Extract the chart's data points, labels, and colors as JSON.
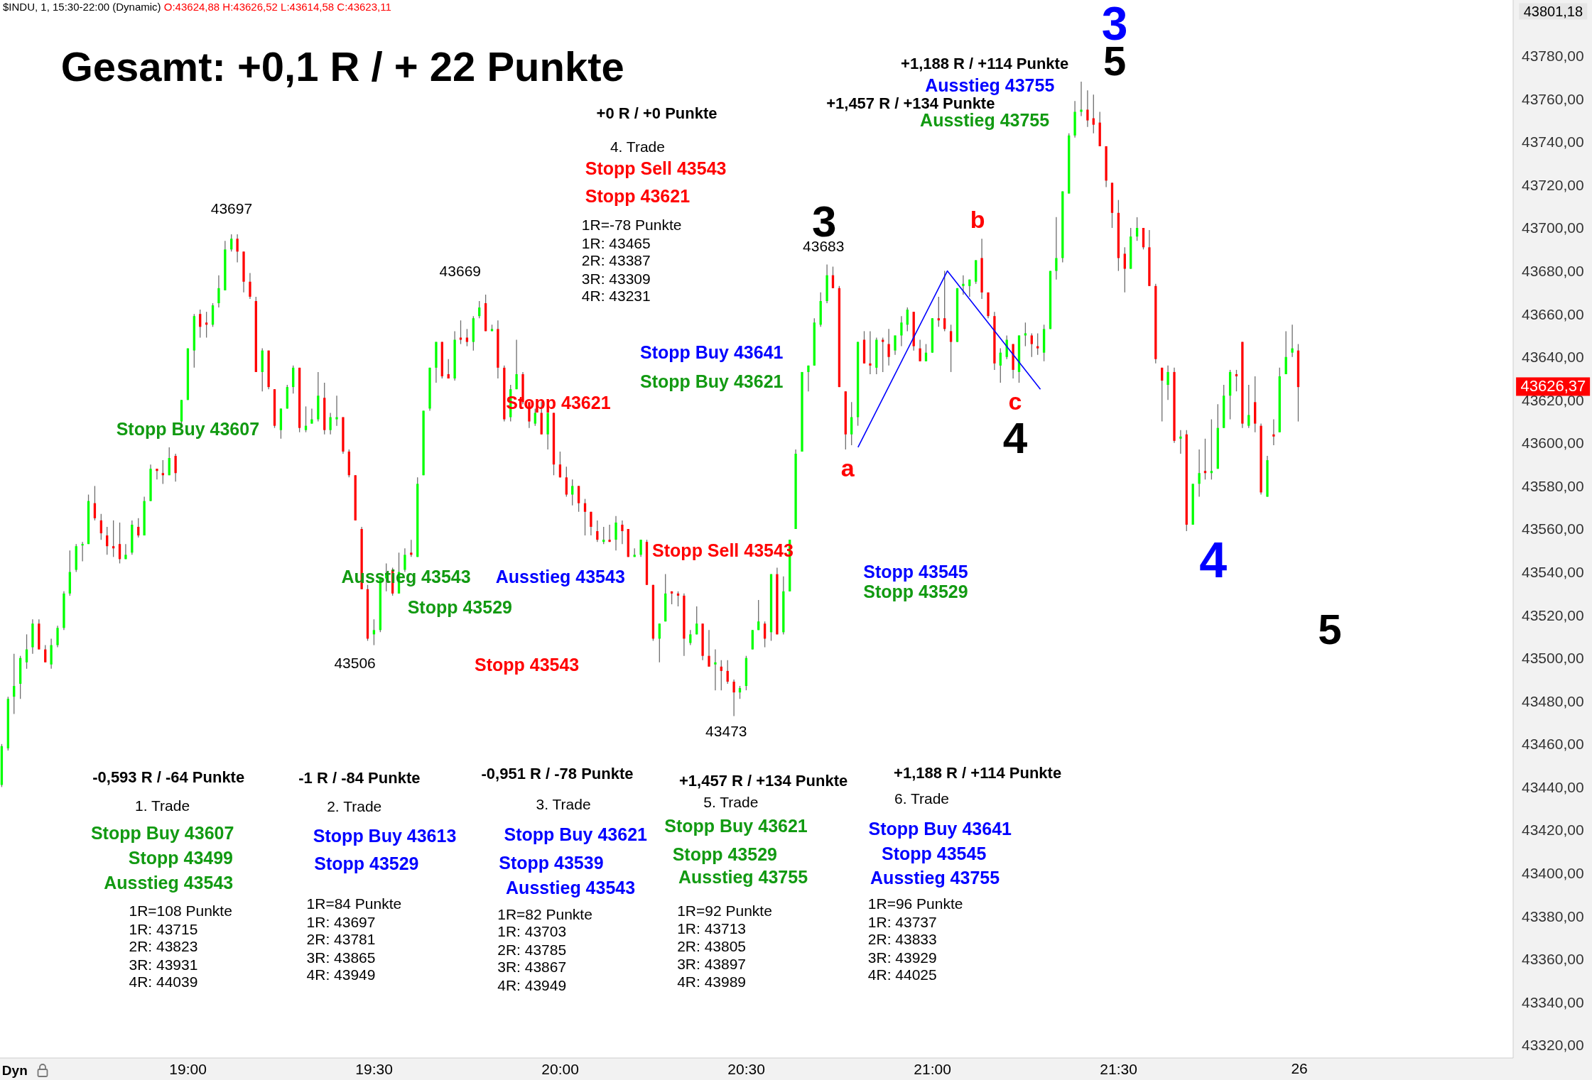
{
  "chart_data": {
    "type": "candlestick",
    "title": "Gesamt: +0,1 R  / + 22 Punkte",
    "subtitle": "$INDU, 1, 15:30-22:00 (Dynamic)",
    "xlim": [
      18.495,
      22.56
    ],
    "xticks": [
      {
        "value": 19,
        "label": "19:00"
      },
      {
        "value": 19.5,
        "label": "19:30"
      },
      {
        "value": 20,
        "label": "20:00"
      },
      {
        "value": 20.5,
        "label": "20:30"
      },
      {
        "value": 21,
        "label": "21:00"
      },
      {
        "value": 21.5,
        "label": "21:30"
      }
    ],
    "ylim": [
      43314,
      43806
    ],
    "yticks": [
      {
        "value": 43320,
        "label": "43320,00"
      },
      {
        "value": 43340,
        "label": "43340,00"
      },
      {
        "value": 43360,
        "label": "43360,00"
      },
      {
        "value": 43380,
        "label": "43380,00"
      },
      {
        "value": 43400,
        "label": "43400,00"
      },
      {
        "value": 43420,
        "label": "43420,00"
      },
      {
        "value": 43440,
        "label": "43440,00"
      },
      {
        "value": 43460,
        "label": "43460,00"
      },
      {
        "value": 43480,
        "label": "43480,00"
      },
      {
        "value": 43500,
        "label": "43500,00"
      },
      {
        "value": 43520,
        "label": "43520,00"
      },
      {
        "value": 43540,
        "label": "43540,00"
      },
      {
        "value": 43560,
        "label": "43560,00"
      },
      {
        "value": 43580,
        "label": "43580,00"
      },
      {
        "value": 43600,
        "label": "43600,00"
      },
      {
        "value": 43620,
        "label": "43620,00"
      },
      {
        "value": 43640,
        "label": "43640,00"
      },
      {
        "value": 43660,
        "label": "43660,00"
      },
      {
        "value": 43680,
        "label": "43680,00"
      },
      {
        "value": 43700,
        "label": "43700,00"
      },
      {
        "value": 43720,
        "label": "43720,00"
      },
      {
        "value": 43740,
        "label": "43740,00"
      },
      {
        "value": 43760,
        "label": "43760,00"
      },
      {
        "value": 43780,
        "label": "43780,00"
      }
    ],
    "series": [
      {
        "x": [
          18.5,
          18.517,
          18.533,
          18.55,
          18.567,
          18.583,
          18.6,
          18.617,
          18.633,
          18.65,
          18.667,
          18.683,
          18.7,
          18.717,
          18.733,
          18.75,
          18.767,
          18.783,
          18.8,
          18.817,
          18.833,
          18.85,
          18.867,
          18.883,
          18.9,
          18.917,
          18.933,
          18.95,
          18.967,
          18.983,
          19.0,
          19.017,
          19.033,
          19.05,
          19.067,
          19.083,
          19.1,
          19.117,
          19.133,
          19.15,
          19.167,
          19.183,
          19.2,
          19.217,
          19.233,
          19.25,
          19.267,
          19.283,
          19.3,
          19.317,
          19.333,
          19.35,
          19.367,
          19.383,
          19.4,
          19.417,
          19.433,
          19.45,
          19.467,
          19.483,
          19.5,
          19.517,
          19.533,
          19.55,
          19.567,
          19.583,
          19.6,
          19.617,
          19.633,
          19.65,
          19.667,
          19.683,
          19.7,
          19.717,
          19.733,
          19.75,
          19.767,
          19.783,
          19.8,
          19.817,
          19.833,
          19.85,
          19.867,
          19.883,
          19.9,
          19.917,
          19.933,
          19.95,
          19.967,
          19.983,
          20.0,
          20.017,
          20.033,
          20.05,
          20.067,
          20.083,
          20.1,
          20.117,
          20.133,
          20.15,
          20.167,
          20.183,
          20.2,
          20.217,
          20.233,
          20.25,
          20.267,
          20.283,
          20.3,
          20.317,
          20.333,
          20.35,
          20.367,
          20.383,
          20.4,
          20.417,
          20.433,
          20.45,
          20.467,
          20.483,
          20.5,
          20.517,
          20.533,
          20.55,
          20.567,
          20.583,
          20.6,
          20.617,
          20.633,
          20.65,
          20.667,
          20.683,
          20.7,
          20.717,
          20.733,
          20.75,
          20.767,
          20.783,
          20.8,
          20.817,
          20.833,
          20.85,
          20.867,
          20.883,
          20.9,
          20.917,
          20.933,
          20.95,
          20.967,
          20.983,
          21.0,
          21.017,
          21.033,
          21.05,
          21.067,
          21.083,
          21.1,
          21.117,
          21.133,
          21.15,
          21.167,
          21.183,
          21.2,
          21.217,
          21.233,
          21.25,
          21.267,
          21.283,
          21.3,
          21.317,
          21.333,
          21.35,
          21.367,
          21.383,
          21.4,
          21.417,
          21.433,
          21.45,
          21.467,
          21.483,
          21.5,
          21.517,
          21.533,
          21.55,
          21.567,
          21.583,
          21.6,
          21.617,
          21.633,
          21.65,
          21.667,
          21.683,
          21.7,
          21.717,
          21.733,
          21.75,
          21.767,
          21.783,
          21.8,
          21.817,
          21.833,
          21.85,
          21.867,
          21.883,
          21.9,
          21.917,
          21.933,
          21.95,
          21.967,
          21.983
        ],
        "ohlc": [
          [
            43441,
            43460,
            43440,
            43459
          ],
          [
            43458,
            43482,
            43457,
            43481
          ],
          [
            43482,
            43502,
            43474,
            43487
          ],
          [
            43488,
            43501,
            43481,
            43500
          ],
          [
            43498,
            43511,
            43495,
            43504
          ],
          [
            43505,
            43518,
            43502,
            43516
          ],
          [
            43516,
            43518,
            43504,
            43504
          ],
          [
            43504,
            43506,
            43498,
            43498
          ],
          [
            43497,
            43509,
            43495,
            43506
          ],
          [
            43506,
            43515,
            43505,
            43514
          ],
          [
            43514,
            43531,
            43513,
            43530
          ],
          [
            43530,
            43550,
            43529,
            43540
          ],
          [
            43541,
            43553,
            43540,
            43552
          ],
          [
            43553,
            43554,
            43545,
            43553
          ],
          [
            43553,
            43576,
            43553,
            43573
          ],
          [
            43572,
            43580,
            43564,
            43565
          ],
          [
            43564,
            43567,
            43555,
            43558
          ],
          [
            43557,
            43561,
            43548,
            43552
          ],
          [
            43552,
            43564,
            43547,
            43551
          ],
          [
            43553,
            43563,
            43544,
            43546
          ],
          [
            43546,
            43553,
            43546,
            43548
          ],
          [
            43549,
            43564,
            43548,
            43562
          ],
          [
            43561,
            43565,
            43556,
            43557
          ],
          [
            43557,
            43575,
            43557,
            43573
          ],
          [
            43573,
            43590,
            43573,
            43588
          ],
          [
            43588,
            43588,
            43583,
            43587
          ],
          [
            43586,
            43592,
            43581,
            43585
          ],
          [
            43585,
            43598,
            43585,
            43593
          ],
          [
            43594,
            43595,
            43582,
            43586
          ],
          [
            43610,
            43620,
            43609,
            43620
          ],
          [
            43620,
            43644,
            43620,
            43644
          ],
          [
            43643,
            43660,
            43635,
            43659
          ],
          [
            43660,
            43662,
            43649,
            43654
          ],
          [
            43656,
            43661,
            43649,
            43655
          ],
          [
            43655,
            43665,
            43654,
            43664
          ],
          [
            43665,
            43678,
            43663,
            43672
          ],
          [
            43671,
            43694,
            43671,
            43690
          ],
          [
            43690,
            43697,
            43689,
            43695
          ],
          [
            43695,
            43697,
            43684,
            43689
          ],
          [
            43689,
            43689,
            43670,
            43675
          ],
          [
            43675,
            43679,
            43667,
            43668
          ],
          [
            43666,
            43668,
            43633,
            43633
          ],
          [
            43633,
            43644,
            43624,
            43643
          ],
          [
            43643,
            43643,
            43625,
            43626
          ],
          [
            43625,
            43625,
            43607,
            43608
          ],
          [
            43606,
            43616,
            43602,
            43616
          ],
          [
            43616,
            43627,
            43616,
            43626
          ],
          [
            43626,
            43636,
            43623,
            43635
          ],
          [
            43635,
            43635,
            43605,
            43607
          ],
          [
            43606,
            43617,
            43605,
            43608
          ],
          [
            43609,
            43616,
            43609,
            43611
          ],
          [
            43611,
            43633,
            43610,
            43622
          ],
          [
            43621,
            43628,
            43604,
            43606
          ],
          [
            43606,
            43614,
            43604,
            43612
          ],
          [
            43611,
            43622,
            43608,
            43612
          ],
          [
            43612,
            43612,
            43595,
            43596
          ],
          [
            43596,
            43597,
            43584,
            43585
          ],
          [
            43585,
            43585,
            43564,
            43564
          ],
          [
            43560,
            43561,
            43532,
            43532
          ],
          [
            43532,
            43534,
            43508,
            43509
          ],
          [
            43511,
            43518,
            43506,
            43513
          ],
          [
            43513,
            43537,
            43512,
            43537
          ],
          [
            43537,
            43544,
            43531,
            43539
          ],
          [
            43541,
            43542,
            43529,
            43530
          ],
          [
            43530,
            43549,
            43530,
            43540
          ],
          [
            43541,
            43551,
            43540,
            43548
          ],
          [
            43549,
            43555,
            43547,
            43548
          ],
          [
            43547,
            43584,
            43547,
            43581
          ],
          [
            43585,
            43615,
            43585,
            43615
          ],
          [
            43616,
            43635,
            43615,
            43635
          ],
          [
            43635,
            43647,
            43628,
            43647
          ],
          [
            43647,
            43647,
            43630,
            43631
          ],
          [
            43632,
            43639,
            43630,
            43630
          ],
          [
            43630,
            43652,
            43629,
            43648
          ],
          [
            43649,
            43657,
            43646,
            43648
          ],
          [
            43649,
            43653,
            43645,
            43647
          ],
          [
            43647,
            43659,
            43643,
            43658
          ],
          [
            43659,
            43666,
            43658,
            43663
          ],
          [
            43665,
            43669,
            43652,
            43652
          ],
          [
            43652,
            43655,
            43652,
            43653
          ],
          [
            43653,
            43657,
            43630,
            43635
          ],
          [
            43635,
            43636,
            43610,
            43611
          ],
          [
            43612,
            43627,
            43610,
            43625
          ],
          [
            43625,
            43648,
            43625,
            43632
          ],
          [
            43632,
            43633,
            43618,
            43619
          ],
          [
            43619,
            43619,
            43607,
            43610
          ],
          [
            43609,
            43616,
            43608,
            43614
          ],
          [
            43614,
            43619,
            43604,
            43604
          ],
          [
            43604,
            43614,
            43597,
            43614
          ],
          [
            43614,
            43614,
            43585,
            43590
          ],
          [
            43590,
            43596,
            43584,
            43584
          ],
          [
            43584,
            43589,
            43575,
            43576
          ],
          [
            43576,
            43583,
            43571,
            43580
          ],
          [
            43580,
            43580,
            43568,
            43572
          ],
          [
            43572,
            43574,
            43557,
            43568
          ],
          [
            43568,
            43568,
            43557,
            43561
          ],
          [
            43559,
            43564,
            43554,
            43555
          ],
          [
            43554,
            43561,
            43553,
            43555
          ],
          [
            43555,
            43562,
            43554,
            43554
          ],
          [
            43555,
            43566,
            43550,
            43563
          ],
          [
            43562,
            43564,
            43553,
            43559
          ],
          [
            43560,
            43560,
            43547,
            43547
          ],
          [
            43547,
            43551,
            43547,
            43548
          ],
          [
            43548,
            43555,
            43547,
            43555
          ],
          [
            43554,
            43555,
            43534,
            43534
          ],
          [
            43534,
            43534,
            43508,
            43509
          ],
          [
            43509,
            43516,
            43498,
            43516
          ],
          [
            43517,
            43539,
            43517,
            43530
          ],
          [
            43531,
            43531,
            43525,
            43530
          ],
          [
            43530,
            43531,
            43524,
            43529
          ],
          [
            43529,
            43530,
            43501,
            43509
          ],
          [
            43507,
            43513,
            43506,
            43511
          ],
          [
            43511,
            43524,
            43511,
            43516
          ],
          [
            43516,
            43516,
            43499,
            43501
          ],
          [
            43501,
            43513,
            43496,
            43496
          ],
          [
            43497,
            43504,
            43485,
            43498
          ],
          [
            43496,
            43499,
            43485,
            43494
          ],
          [
            43494,
            43499,
            43488,
            43489
          ],
          [
            43489,
            43490,
            43473,
            43484
          ],
          [
            43484,
            43487,
            43481,
            43486
          ],
          [
            43487,
            43501,
            43485,
            43500
          ],
          [
            43504,
            43513,
            43504,
            43513
          ],
          [
            43513,
            43527,
            43513,
            43517
          ],
          [
            43516,
            43517,
            43505,
            43509
          ],
          [
            43512,
            43539,
            43508,
            43539
          ],
          [
            43539,
            43542,
            43511,
            43511
          ],
          [
            43512,
            43538,
            43511,
            43531
          ],
          [
            43531,
            43555,
            43531,
            43555
          ],
          [
            43560,
            43597,
            43560,
            43595
          ],
          [
            43596,
            43633,
            43596,
            43633
          ],
          [
            43633,
            43636,
            43624,
            43636
          ],
          [
            43636,
            43658,
            43636,
            43656
          ],
          [
            43655,
            43670,
            43654,
            43666
          ],
          [
            43666,
            43683,
            43665,
            43678
          ],
          [
            43678,
            43682,
            43672,
            43672
          ],
          [
            43672,
            43673,
            43626,
            43626
          ],
          [
            43624,
            43624,
            43597,
            43604
          ],
          [
            43604,
            43619,
            43599,
            43612
          ],
          [
            43612,
            43647,
            43608,
            43647
          ],
          [
            43648,
            43652,
            43637,
            43637
          ],
          [
            43637,
            43652,
            43632,
            43636
          ],
          [
            43635,
            43649,
            43632,
            43648
          ],
          [
            43648,
            43649,
            43633,
            43647
          ],
          [
            43646,
            43653,
            43636,
            43640
          ],
          [
            43643,
            43650,
            43641,
            43650
          ],
          [
            43650,
            43659,
            43645,
            43656
          ],
          [
            43655,
            43663,
            43652,
            43662
          ],
          [
            43661,
            43661,
            43643,
            43645
          ],
          [
            43644,
            43648,
            43638,
            43638
          ],
          [
            43638,
            43646,
            43638,
            43642
          ],
          [
            43642,
            43658,
            43642,
            43658
          ],
          [
            43658,
            43668,
            43654,
            43657
          ],
          [
            43658,
            43680,
            43652,
            43653
          ],
          [
            43652,
            43655,
            43633,
            43647
          ],
          [
            43647,
            43672,
            43647,
            43672
          ],
          [
            43673,
            43678,
            43669,
            43674
          ],
          [
            43673,
            43676,
            43668,
            43676
          ],
          [
            43675,
            43685,
            43674,
            43685
          ],
          [
            43686,
            43695,
            43667,
            43670
          ],
          [
            43670,
            43670,
            43658,
            43659
          ],
          [
            43659,
            43661,
            43634,
            43637
          ],
          [
            43636,
            43644,
            43628,
            43642
          ],
          [
            43640,
            43650,
            43639,
            43648
          ],
          [
            43646,
            43646,
            43630,
            43634
          ],
          [
            43633,
            43650,
            43628,
            43650
          ],
          [
            43650,
            43656,
            43645,
            43651
          ],
          [
            43650,
            43651,
            43640,
            43646
          ],
          [
            43645,
            43651,
            43641,
            43644
          ],
          [
            43642,
            43655,
            43638,
            43653
          ],
          [
            43653,
            43680,
            43653,
            43680
          ],
          [
            43680,
            43705,
            43676,
            43686
          ],
          [
            43686,
            43717,
            43684,
            43717
          ],
          [
            43716,
            43744,
            43716,
            43743
          ],
          [
            43743,
            43759,
            43742,
            43754
          ],
          [
            43754,
            43768,
            43752,
            43755
          ],
          [
            43755,
            43764,
            43747,
            43750
          ],
          [
            43751,
            43762,
            43744,
            43748
          ],
          [
            43749,
            43754,
            43738,
            43738
          ],
          [
            43738,
            43738,
            43719,
            43722
          ],
          [
            43721,
            43721,
            43700,
            43707
          ],
          [
            43707,
            43713,
            43680,
            43686
          ],
          [
            43688,
            43691,
            43670,
            43681
          ],
          [
            43681,
            43700,
            43681,
            43696
          ],
          [
            43696,
            43705,
            43694,
            43700
          ],
          [
            43700,
            43700,
            43690,
            43691
          ],
          [
            43691,
            43699,
            43673,
            43673
          ],
          [
            43673,
            43674,
            43637,
            43639
          ],
          [
            43635,
            43635,
            43610,
            43629
          ],
          [
            43627,
            43636,
            43620,
            43633
          ],
          [
            43633,
            43635,
            43600,
            43601
          ],
          [
            43602,
            43606,
            43595,
            43603
          ],
          [
            43604,
            43606,
            43559,
            43562
          ],
          [
            43562,
            43581,
            43562,
            43581
          ],
          [
            43581,
            43597,
            43575,
            43586
          ],
          [
            43587,
            43602,
            43583,
            43586
          ],
          [
            43586,
            43611,
            43583,
            43587
          ],
          [
            43588,
            43618,
            43588,
            43607
          ],
          [
            43607,
            43627,
            43607,
            43622
          ],
          [
            43622,
            43634,
            43611,
            43633
          ],
          [
            43632,
            43634,
            43624,
            43631
          ],
          [
            43647,
            43647,
            43607,
            43609
          ],
          [
            43608,
            43627,
            43607,
            43613
          ],
          [
            43619,
            43631,
            43605,
            43609
          ],
          [
            43608,
            43609,
            43576,
            43577
          ],
          [
            43575,
            43594,
            43575,
            43592
          ],
          [
            43604,
            43611,
            43599,
            43603
          ],
          [
            43605,
            43635,
            43605,
            43631
          ],
          [
            43632,
            43652,
            43632,
            43640
          ],
          [
            43642,
            43655,
            43640,
            43644
          ],
          [
            43643,
            43646,
            43610,
            43626
          ]
        ]
      },
      {
        "type": "line",
        "color": "#0000ff",
        "x": [
          20.8,
          21.04,
          21.29
        ],
        "values": [
          43598,
          43680,
          43625
        ]
      }
    ],
    "annotations": [
      "O:43624,88 H:43626,52 L:43614,58 C:43623,11",
      "+0 R / +0 Punkte",
      "4. Trade",
      "Stopp Sell 43543",
      "Stopp 43621",
      "1R=-78 Punkte",
      "1R: 43465",
      "2R: 43387",
      "3R: 43309",
      "4R: 43231",
      "+1,188 R / +114 Punkte",
      "Ausstieg 43755",
      "+1,457 R / +134 Punkte",
      "Ausstieg 43755",
      "3",
      "5",
      "3",
      "4",
      "4",
      "5",
      "a",
      "b",
      "c",
      {
        "text": "43697",
        "x": 19.117,
        "y": 43697
      },
      {
        "text": "43669",
        "x": 19.8,
        "y": 43669
      },
      {
        "text": "43506",
        "x": 19.5,
        "y": 43506
      },
      {
        "text": "43473",
        "x": 20.467,
        "y": 43473
      },
      {
        "text": "43683",
        "x": 20.717,
        "y": 43683
      },
      "Stopp Buy 43607",
      "Stopp 43621",
      "Stopp Buy 43641",
      "Stopp Buy 43621",
      "Ausstieg 43543",
      "Ausstieg 43543",
      "Stopp Sell 43543",
      "Stopp 43529",
      "Stopp 43543",
      "Stopp 43545",
      "Stopp 43529",
      "-0,593 R / -64 Punkte",
      "1. Trade",
      "Stopp Buy 43607",
      "Stopp 43499",
      "Ausstieg 43543",
      "1R=108 Punkte",
      "1R: 43715",
      "2R: 43823",
      "3R: 43931",
      "4R: 44039",
      "-1 R / -84 Punkte",
      "2. Trade",
      "Stopp Buy 43613",
      "Stopp 43529",
      "1R=84 Punkte",
      "1R: 43697",
      "2R: 43781",
      "3R: 43865",
      "4R: 43949",
      "-0,951 R / -78 Punkte",
      "3. Trade",
      "Stopp Buy 43621",
      "Stopp 43539",
      "Ausstieg 43543",
      "1R=82 Punkte",
      "1R: 43703",
      "2R: 43785",
      "3R: 43867",
      "4R: 43949",
      "+1,457 R / +134 Punkte",
      "5. Trade",
      "Stopp Buy 43621",
      "Stopp 43529",
      "Ausstieg 43755",
      "1R=92 Punkte",
      "1R: 43713",
      "2R: 43805",
      "3R: 43897",
      "4R: 43989",
      "+1,188 R / +114 Punkte",
      "6. Trade",
      "Stopp Buy 43641",
      "Stopp 43545",
      "Ausstieg 43755",
      "1R=96 Punkte",
      "1R: 43737",
      "2R: 43833",
      "3R: 43929",
      "4R: 44025",
      "43801,18",
      "43626,37",
      "Dyn",
      "26"
    ]
  }
}
